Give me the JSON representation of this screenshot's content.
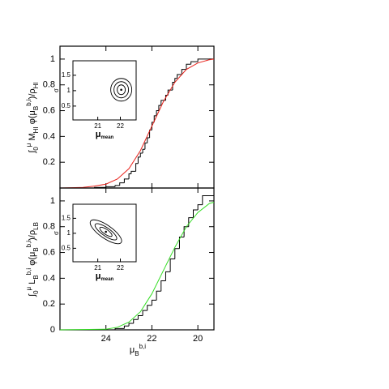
{
  "chart_data": [
    {
      "type": "line",
      "y_label": [
        {
          "text": "∫",
          "role": "main"
        },
        {
          "text": "0",
          "role": "sub"
        },
        {
          "text": "μ",
          "role": "sup"
        },
        {
          "text": " M",
          "role": "main"
        },
        {
          "text": "HI",
          "role": "sub"
        },
        {
          "text": " φ(μ",
          "role": "main"
        },
        {
          "text": "B",
          "role": "sub"
        },
        {
          "text": "b,i",
          "role": "sup"
        },
        {
          "text": ")/ρ",
          "role": "main"
        },
        {
          "text": "HI",
          "role": "sub"
        }
      ],
      "xlim": [
        26,
        19.3
      ],
      "ylim": [
        0,
        1.1
      ],
      "xticks": [
        24,
        22,
        20
      ],
      "show_xtick_labels": false,
      "yticks": [
        0.2,
        0.4,
        0.6,
        0.8,
        1
      ],
      "series": [
        {
          "color": "#000000",
          "step": true,
          "x": [
            25.0,
            24.5,
            24.0,
            23.6,
            23.4,
            23.2,
            23.0,
            22.9,
            22.7,
            22.6,
            22.5,
            22.4,
            22.3,
            22.2,
            22.1,
            22.0,
            21.9,
            21.8,
            21.7,
            21.6,
            21.4,
            21.3,
            21.1,
            21.0,
            20.9,
            20.7,
            20.5,
            20.3,
            20.0,
            19.3
          ],
          "values": [
            0,
            0.005,
            0.01,
            0.02,
            0.04,
            0.07,
            0.11,
            0.13,
            0.19,
            0.24,
            0.27,
            0.3,
            0.35,
            0.39,
            0.45,
            0.51,
            0.56,
            0.6,
            0.64,
            0.68,
            0.72,
            0.76,
            0.82,
            0.85,
            0.88,
            0.92,
            0.96,
            0.98,
            1.0,
            1.0
          ]
        },
        {
          "color": "#e8221b",
          "step": false,
          "x": [
            26,
            25,
            24.5,
            24,
            23.5,
            23,
            22.5,
            22,
            21.5,
            21,
            20.5,
            20,
            19.5,
            19.3
          ],
          "values": [
            0,
            0.005,
            0.015,
            0.03,
            0.07,
            0.15,
            0.29,
            0.48,
            0.67,
            0.82,
            0.92,
            0.97,
            0.995,
            1.0
          ]
        }
      ],
      "inset": {
        "xlim": [
          19.9,
          22.7
        ],
        "ylim": [
          0.05,
          1.97
        ],
        "xticks": [
          21,
          22
        ],
        "yticks": [
          0.5,
          1,
          1.5
        ],
        "x_label": [
          {
            "text": "μ",
            "role": "main"
          },
          {
            "text": "mean",
            "role": "sub"
          }
        ],
        "y_label": "σ",
        "best_fit": [
          22.04,
          1.03
        ],
        "contour_shape": "round"
      }
    },
    {
      "type": "line",
      "y_label": [
        {
          "text": "∫",
          "role": "main"
        },
        {
          "text": "0",
          "role": "sub"
        },
        {
          "text": "μ",
          "role": "sup"
        },
        {
          "text": " L",
          "role": "main"
        },
        {
          "text": "B",
          "role": "sub"
        },
        {
          "text": "b,i",
          "role": "sup"
        },
        {
          "text": " φ(μ",
          "role": "main"
        },
        {
          "text": "B",
          "role": "sub"
        },
        {
          "text": "b,i",
          "role": "sup"
        },
        {
          "text": ")/ρ",
          "role": "main"
        },
        {
          "text": "LB",
          "role": "sub"
        }
      ],
      "x_label": [
        {
          "text": "μ",
          "role": "main"
        },
        {
          "text": "B",
          "role": "sub"
        },
        {
          "text": "b,i",
          "role": "sup"
        }
      ],
      "xlim": [
        26,
        19.3
      ],
      "ylim": [
        0,
        1.1
      ],
      "xticks": [
        24,
        22,
        20
      ],
      "show_xtick_labels": true,
      "yticks": [
        0,
        0.2,
        0.4,
        0.6,
        0.8,
        1
      ],
      "series": [
        {
          "color": "#000000",
          "step": true,
          "x": [
            26,
            23.6,
            23.2,
            23.0,
            22.8,
            22.6,
            22.4,
            22.2,
            22.0,
            21.8,
            21.6,
            21.4,
            21.2,
            21.0,
            20.8,
            20.6,
            20.4,
            20.2,
            20.0,
            19.8,
            19.3
          ],
          "values": [
            0,
            0.01,
            0.03,
            0.05,
            0.08,
            0.11,
            0.15,
            0.19,
            0.23,
            0.3,
            0.38,
            0.45,
            0.55,
            0.63,
            0.72,
            0.8,
            0.87,
            0.93,
            0.97,
            1.04,
            1.04
          ]
        },
        {
          "color": "#33dd22",
          "step": false,
          "x": [
            26,
            24,
            23.5,
            23,
            22.5,
            22,
            21.5,
            21,
            20.5,
            20,
            19.5,
            19.3
          ],
          "values": [
            0,
            0.005,
            0.02,
            0.06,
            0.14,
            0.28,
            0.46,
            0.64,
            0.8,
            0.91,
            0.98,
            0.99
          ]
        }
      ],
      "inset": {
        "xlim": [
          19.9,
          22.7
        ],
        "ylim": [
          0.05,
          1.97
        ],
        "xticks": [
          21,
          22
        ],
        "yticks": [
          0.5,
          1,
          1.5
        ],
        "x_label": [
          {
            "text": "μ",
            "role": "main"
          },
          {
            "text": "mean",
            "role": "sub"
          }
        ],
        "y_label": "σ",
        "best_fit": [
          21.36,
          1.05
        ],
        "contour_shape": "tilted"
      }
    }
  ]
}
